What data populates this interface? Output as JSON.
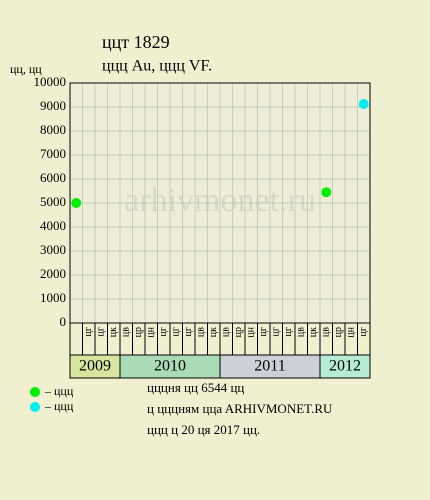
{
  "chart_data": {
    "type": "scatter",
    "title": "ццт 1829",
    "subtitle": "ццц Au, ццц VF.",
    "y_label": "цц, цц",
    "watermark": "arhivmonet.ru",
    "groups": [
      {
        "label": "2009",
        "color": "#d8e59e",
        "months": [
          null,
          "цг",
          "цг",
          "цк"
        ]
      },
      {
        "label": "2010",
        "color": "#a9dcb6",
        "months": [
          "цв",
          "цр",
          "цн",
          "цг",
          "цг",
          "цг",
          "цв",
          "цк"
        ]
      },
      {
        "label": "2011",
        "color": "#cdd0d6",
        "months": [
          "цв",
          "цр",
          "цн",
          "цг",
          "цг",
          "цг",
          "цв",
          "цк"
        ]
      },
      {
        "label": "2012",
        "color": "#b6ecd6",
        "months": [
          "цв",
          "цр",
          "цн",
          "цг"
        ]
      }
    ],
    "series": [
      {
        "name": "– ццц",
        "color": "#00ee00",
        "values": [
          5000,
          null,
          null,
          null,
          null,
          null,
          null,
          null,
          null,
          null,
          null,
          null,
          null,
          null,
          null,
          null,
          null,
          null,
          null,
          null,
          5450,
          null,
          null,
          null
        ]
      },
      {
        "name": "– ццц",
        "color": "#00eeee",
        "values": [
          null,
          null,
          null,
          null,
          null,
          null,
          null,
          null,
          null,
          null,
          null,
          null,
          null,
          null,
          null,
          null,
          null,
          null,
          null,
          null,
          null,
          null,
          null,
          9125
        ]
      }
    ],
    "ylim": [
      0,
      10000
    ],
    "yticks": [
      0,
      1000,
      2000,
      3000,
      4000,
      5000,
      6000,
      7000,
      8000,
      9000,
      10000
    ],
    "grid": true,
    "footer": [
      "цццня цц 6544 цц",
      "ц цццням ццa ARHIVMONET.RU",
      "ццц ц 20 ця 2017 цц."
    ]
  }
}
